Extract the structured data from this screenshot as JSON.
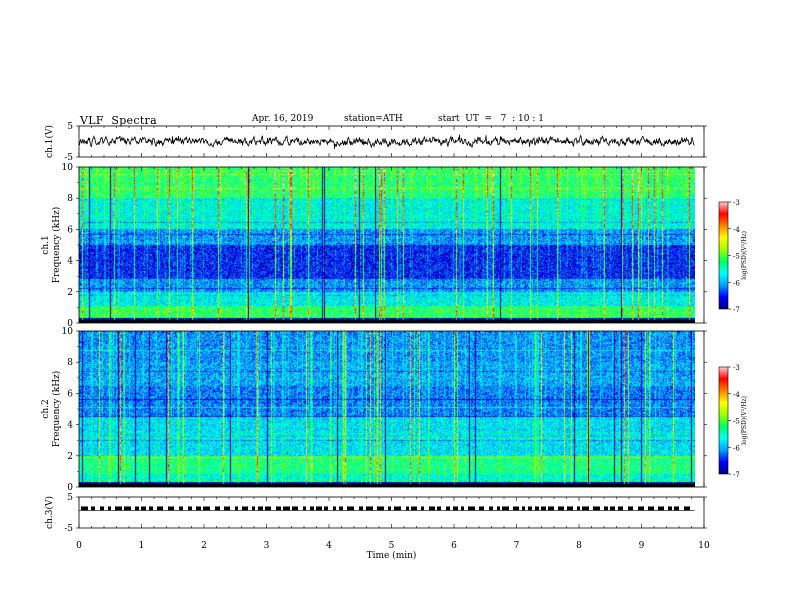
{
  "header": {
    "title": "VLF  Spectra",
    "date": "Apr. 16, 2019",
    "station": "station=ATH",
    "start": "start  UT  =   7  : 10 : 1"
  },
  "colors": {
    "spectrogram_scale": [
      "#000080",
      "#0000ff",
      "#00a0ff",
      "#00ffff",
      "#00ff60",
      "#a0ff00",
      "#ffff00",
      "#ff8000",
      "#ff0000",
      "#ffd0d0"
    ]
  },
  "chart_data": [
    {
      "type": "line",
      "panel": "ch1-waveform",
      "ylabel": "ch.1(V)",
      "ylim": [
        -5,
        5
      ],
      "y_ticks": [
        "5",
        "-5"
      ],
      "xlim": [
        0,
        10
      ],
      "series": [
        {
          "description_values": "noisy trace around 0 V, amplitude about ±0.6 V, from 0 to 9.85 min",
          "values": [
            0.0,
            9.85
          ]
        }
      ]
    },
    {
      "type": "heatmap",
      "panel": "ch1-spectrogram",
      "ylabel_top": "ch.1",
      "ylabel": "Frequency  (kHz)",
      "ylim": [
        0,
        10
      ],
      "y_ticks": [
        "0",
        "2",
        "4",
        "6",
        "8",
        "10"
      ],
      "xlim": [
        0,
        10
      ],
      "data_end_min": 9.85,
      "colorbar": {
        "label": "log(PSD)(V²/Hz)",
        "range": [
          -7,
          -3
        ],
        "ticks": [
          "-3",
          "-4",
          "-5",
          "-6",
          "-7"
        ]
      }
    },
    {
      "type": "heatmap",
      "panel": "ch2-spectrogram",
      "ylabel_top": "ch.2",
      "ylabel": "Frequency  (kHz)",
      "ylim": [
        0,
        10
      ],
      "y_ticks": [
        "0",
        "2",
        "4",
        "6",
        "8",
        "10"
      ],
      "xlim": [
        0,
        10
      ],
      "data_end_min": 9.85,
      "colorbar": {
        "label": "log(PSD)(V²/Hz)",
        "range": [
          -7,
          -3
        ],
        "ticks": [
          "-3",
          "-4",
          "-5",
          "-6",
          "-7"
        ]
      }
    },
    {
      "type": "line",
      "panel": "ch3-waveform",
      "ylabel": "ch.3(V)",
      "ylim": [
        -5,
        5
      ],
      "y_ticks": [
        "5",
        "-5"
      ],
      "xlim": [
        0,
        10
      ],
      "xlabel": "Time  (min)",
      "x_ticks": [
        "0",
        "1",
        "2",
        "3",
        "4",
        "5",
        "6",
        "7",
        "8",
        "9",
        "10"
      ],
      "series": [
        {
          "level_v": 1.3,
          "pattern": "dashed square pulses",
          "values": [
            0.0,
            9.85
          ]
        }
      ]
    }
  ]
}
